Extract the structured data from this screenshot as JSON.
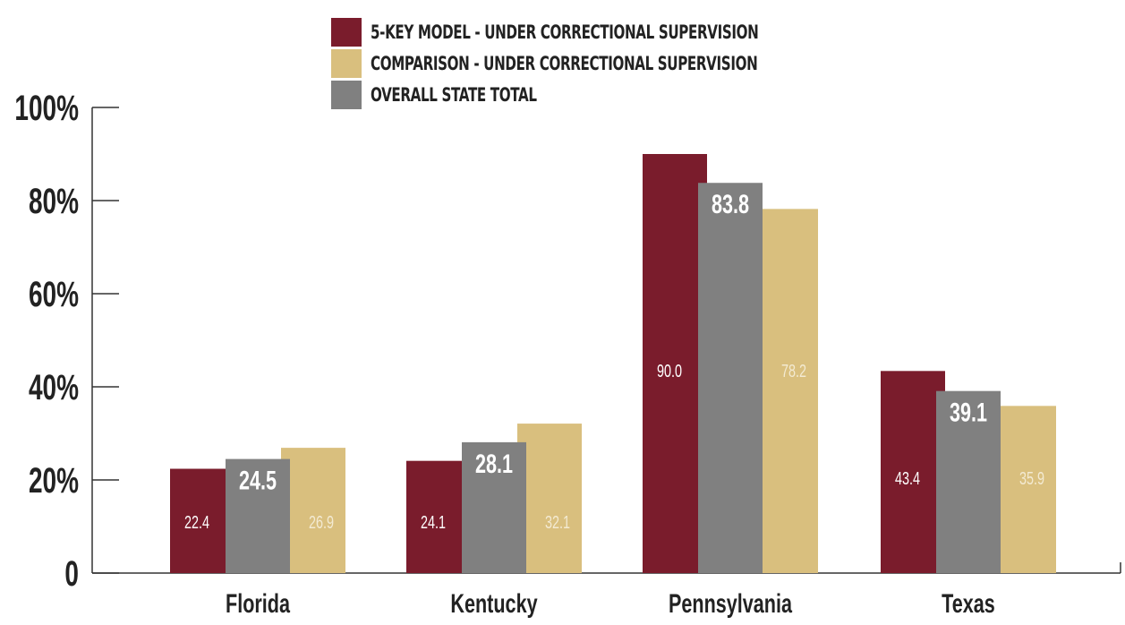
{
  "chart_data": {
    "type": "bar",
    "categories": [
      "Florida",
      "Kentucky",
      "Pennsylvania",
      "Texas"
    ],
    "series": [
      {
        "name": "5-KEY MODEL - UNDER CORRECTIONAL SUPERVISION",
        "color": "#7a1c2c",
        "label_color": "#ffffff",
        "label_size": "small",
        "values": [
          22.4,
          24.1,
          90.0,
          43.4
        ],
        "labels": [
          "22.4",
          "24.1",
          "90.0",
          "43.4"
        ]
      },
      {
        "name": "OVERALL STATE TOTAL",
        "color": "#808080",
        "label_color": "#ffffff",
        "label_size": "large",
        "values": [
          24.5,
          28.1,
          83.8,
          39.1
        ],
        "labels": [
          "24.5",
          "28.1",
          "83.8",
          "39.1"
        ]
      },
      {
        "name": "COMPARISON - UNDER CORRECTIONAL SUPERVISION",
        "color": "#d9bf7e",
        "label_color": "#f3ead2",
        "label_size": "small",
        "values": [
          26.9,
          32.1,
          78.2,
          35.9
        ],
        "labels": [
          "26.9",
          "32.1",
          "78.2",
          "35.9"
        ]
      }
    ],
    "legend": [
      {
        "name": "5-KEY MODEL - UNDER CORRECTIONAL SUPERVISION",
        "color": "#7a1c2c"
      },
      {
        "name": "COMPARISON - UNDER CORRECTIONAL SUPERVISION",
        "color": "#d9bf7e"
      },
      {
        "name": "OVERALL STATE TOTAL",
        "color": "#808080"
      }
    ],
    "legend_position": "top-center",
    "y_ticks": [
      0,
      20,
      40,
      60,
      80,
      100
    ],
    "y_tick_labels": [
      "0",
      "20%",
      "40%",
      "60%",
      "80%",
      "100%"
    ],
    "ylim": [
      0,
      100
    ],
    "grid": false
  }
}
